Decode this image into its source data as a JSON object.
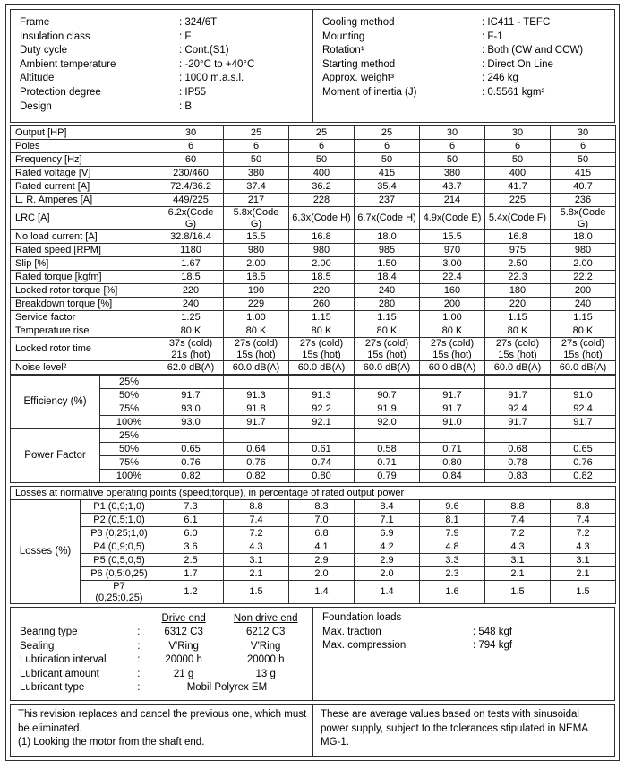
{
  "header": {
    "left": [
      {
        "label": "Frame",
        "value": ": 324/6T"
      },
      {
        "label": "Insulation class",
        "value": ": F"
      },
      {
        "label": "Duty cycle",
        "value": ": Cont.(S1)"
      },
      {
        "label": "Ambient temperature",
        "value": ": -20°C to +40°C"
      },
      {
        "label": "Altitude",
        "value": ": 1000 m.a.s.l."
      },
      {
        "label": "Protection degree",
        "value": ": IP55"
      },
      {
        "label": "Design",
        "value": ": B"
      }
    ],
    "right": [
      {
        "label": "Cooling method",
        "value": ": IC411 - TEFC"
      },
      {
        "label": "Mounting",
        "value": ": F-1"
      },
      {
        "label": "Rotation¹",
        "value": ": Both (CW and CCW)"
      },
      {
        "label": "Starting method",
        "value": ": Direct On Line"
      },
      {
        "label": "Approx. weight³",
        "value": ": 246 kg"
      },
      {
        "label": "Moment of inertia (J)",
        "value": ": 0.5561 kgm²"
      }
    ]
  },
  "spec_table": {
    "rows": [
      {
        "label": "Output [HP]",
        "values": [
          "30",
          "25",
          "25",
          "25",
          "30",
          "30",
          "30"
        ]
      },
      {
        "label": "Poles",
        "values": [
          "6",
          "6",
          "6",
          "6",
          "6",
          "6",
          "6"
        ]
      },
      {
        "label": "Frequency [Hz]",
        "values": [
          "60",
          "50",
          "50",
          "50",
          "50",
          "50",
          "50"
        ]
      },
      {
        "label": "Rated voltage [V]",
        "values": [
          "230/460",
          "380",
          "400",
          "415",
          "380",
          "400",
          "415"
        ]
      },
      {
        "label": "Rated current [A]",
        "values": [
          "72.4/36.2",
          "37.4",
          "36.2",
          "35.4",
          "43.7",
          "41.7",
          "40.7"
        ]
      },
      {
        "label": "L. R. Amperes [A]",
        "values": [
          "449/225",
          "217",
          "228",
          "237",
          "214",
          "225",
          "236"
        ]
      },
      {
        "label": "LRC [A]",
        "values": [
          "6.2x(Code\nG)",
          "5.8x(Code\nG)",
          "6.3x(Code H)",
          "6.7x(Code H)",
          "4.9x(Code E)",
          "5.4x(Code F)",
          "5.8x(Code\nG)"
        ]
      },
      {
        "label": "No load current [A]",
        "values": [
          "32.8/16.4",
          "15.5",
          "16.8",
          "18.0",
          "15.5",
          "16.8",
          "18.0"
        ]
      },
      {
        "label": "Rated speed [RPM]",
        "values": [
          "1180",
          "980",
          "980",
          "985",
          "970",
          "975",
          "980"
        ]
      },
      {
        "label": "Slip [%]",
        "values": [
          "1.67",
          "2.00",
          "2.00",
          "1.50",
          "3.00",
          "2.50",
          "2.00"
        ]
      },
      {
        "label": "Rated torque [kgfm]",
        "values": [
          "18.5",
          "18.5",
          "18.5",
          "18.4",
          "22.4",
          "22.3",
          "22.2"
        ]
      },
      {
        "label": "Locked rotor torque [%]",
        "values": [
          "220",
          "190",
          "220",
          "240",
          "160",
          "180",
          "200"
        ]
      },
      {
        "label": "Breakdown torque [%]",
        "values": [
          "240",
          "229",
          "260",
          "280",
          "200",
          "220",
          "240"
        ]
      },
      {
        "label": "Service factor",
        "values": [
          "1.25",
          "1.00",
          "1.15",
          "1.15",
          "1.00",
          "1.15",
          "1.15"
        ]
      },
      {
        "label": "Temperature rise",
        "values": [
          "80 K",
          "80 K",
          "80 K",
          "80 K",
          "80 K",
          "80 K",
          "80 K"
        ]
      },
      {
        "label": "Locked rotor time",
        "values": [
          "37s (cold)\n21s (hot)",
          "27s (cold)\n15s (hot)",
          "27s (cold)\n15s (hot)",
          "27s (cold)\n15s (hot)",
          "27s (cold)\n15s (hot)",
          "27s (cold)\n15s (hot)",
          "27s (cold)\n15s (hot)"
        ]
      },
      {
        "label": "Noise level²",
        "values": [
          "62.0 dB(A)",
          "60.0 dB(A)",
          "60.0 dB(A)",
          "60.0 dB(A)",
          "60.0 dB(A)",
          "60.0 dB(A)",
          "60.0 dB(A)"
        ]
      }
    ]
  },
  "efficiency": {
    "label": "Efficiency (%)",
    "rows": [
      {
        "load": "25%",
        "values": [
          "",
          "",
          "",
          "",
          "",
          "",
          ""
        ]
      },
      {
        "load": "50%",
        "values": [
          "91.7",
          "91.3",
          "91.3",
          "90.7",
          "91.7",
          "91.7",
          "91.0"
        ]
      },
      {
        "load": "75%",
        "values": [
          "93.0",
          "91.8",
          "92.2",
          "91.9",
          "91.7",
          "92.4",
          "92.4"
        ]
      },
      {
        "load": "100%",
        "values": [
          "93.0",
          "91.7",
          "92.1",
          "92.0",
          "91.0",
          "91.7",
          "91.7"
        ]
      }
    ]
  },
  "power_factor": {
    "label": "Power Factor",
    "rows": [
      {
        "load": "25%",
        "values": [
          "",
          "",
          "",
          "",
          "",
          "",
          ""
        ]
      },
      {
        "load": "50%",
        "values": [
          "0.65",
          "0.64",
          "0.61",
          "0.58",
          "0.71",
          "0.68",
          "0.65"
        ]
      },
      {
        "load": "75%",
        "values": [
          "0.76",
          "0.76",
          "0.74",
          "0.71",
          "0.80",
          "0.78",
          "0.76"
        ]
      },
      {
        "load": "100%",
        "values": [
          "0.82",
          "0.82",
          "0.80",
          "0.79",
          "0.84",
          "0.83",
          "0.82"
        ]
      }
    ]
  },
  "losses": {
    "header": "Losses at normative operating points (speed;torque), in percentage of rated output power",
    "label": "Losses (%)",
    "rows": [
      {
        "point": "P1 (0,9;1,0)",
        "values": [
          "7.3",
          "8.8",
          "8.3",
          "8.4",
          "9.6",
          "8.8",
          "8.8"
        ]
      },
      {
        "point": "P2 (0,5;1,0)",
        "values": [
          "6.1",
          "7.4",
          "7.0",
          "7.1",
          "8.1",
          "7.4",
          "7.4"
        ]
      },
      {
        "point": "P3 (0,25;1,0)",
        "values": [
          "6.0",
          "7.2",
          "6.8",
          "6.9",
          "7.9",
          "7.2",
          "7.2"
        ]
      },
      {
        "point": "P4 (0,9;0,5)",
        "values": [
          "3.6",
          "4.3",
          "4.1",
          "4.2",
          "4.8",
          "4.3",
          "4.3"
        ]
      },
      {
        "point": "P5 (0,5;0,5)",
        "values": [
          "2.5",
          "3.1",
          "2.9",
          "2.9",
          "3.3",
          "3.1",
          "3.1"
        ]
      },
      {
        "point": "P6 (0,5;0,25)",
        "values": [
          "1.7",
          "2.1",
          "2.0",
          "2.0",
          "2.3",
          "2.1",
          "2.1"
        ]
      },
      {
        "point": "P7\n(0,25;0,25)",
        "values": [
          "1.2",
          "1.5",
          "1.4",
          "1.4",
          "1.6",
          "1.5",
          "1.5"
        ]
      }
    ]
  },
  "bearings": {
    "col_headers": {
      "drive": "Drive end",
      "non_drive": "Non drive end"
    },
    "rows": [
      {
        "label": "Bearing type",
        "colon": ":",
        "drive": "6312 C3",
        "non_drive": "6212 C3"
      },
      {
        "label": "Sealing",
        "colon": ":",
        "drive": "V'Ring",
        "non_drive": "V'Ring"
      },
      {
        "label": "Lubrication interval",
        "colon": ":",
        "drive": "20000 h",
        "non_drive": "20000 h"
      },
      {
        "label": "Lubricant amount",
        "colon": ":",
        "drive": "21 g",
        "non_drive": "13 g"
      }
    ],
    "lubricant_type": {
      "label": "Lubricant type",
      "colon": ":",
      "value": "Mobil Polyrex EM"
    }
  },
  "foundation": {
    "title": "Foundation loads",
    "rows": [
      {
        "label": "Max. traction",
        "value": ": 548 kgf"
      },
      {
        "label": "Max. compression",
        "value": ": 794 kgf"
      }
    ]
  },
  "notes": {
    "left_line1": "This revision replaces and cancel the previous one, which must be eliminated.",
    "left_line2": "(1) Looking the motor from the shaft end.",
    "right": "These are average values based on tests with sinusoidal power supply, subject to the tolerances stipulated in NEMA MG-1."
  }
}
